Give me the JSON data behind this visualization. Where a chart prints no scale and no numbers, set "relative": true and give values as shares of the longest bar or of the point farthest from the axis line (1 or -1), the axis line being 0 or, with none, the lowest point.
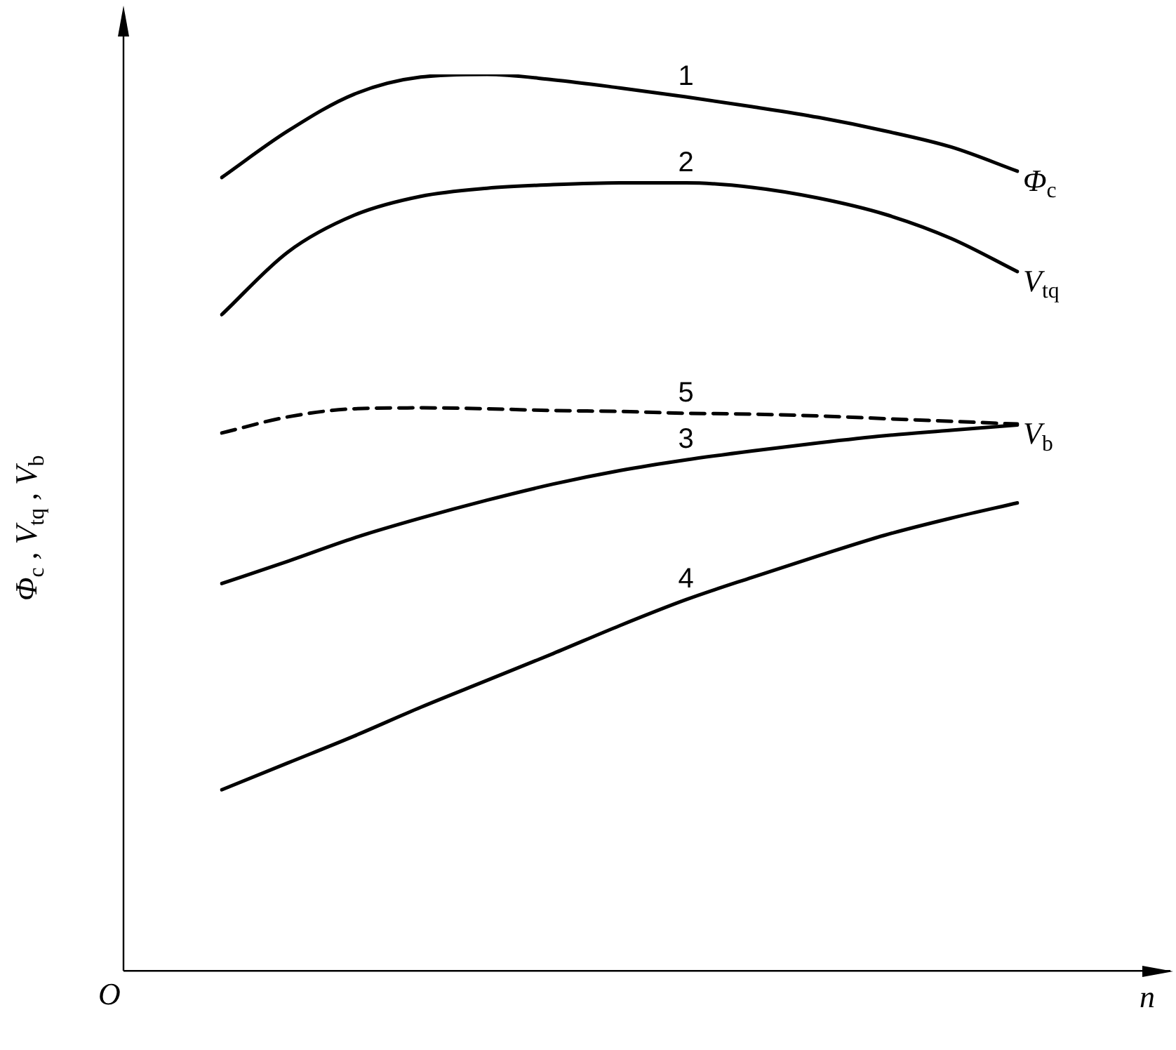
{
  "chart_data": {
    "type": "line",
    "relative": true,
    "xlabel": "n",
    "ylabel": "Φ$_{c}$ , V$_{tq}$ , V$_{b}$",
    "legend": false,
    "marker": "none",
    "categories": [
      null,
      null,
      null,
      null,
      null,
      null,
      null,
      null,
      null,
      null,
      null,
      null,
      null
    ],
    "series": [
      {
        "name": "1",
        "color": "#000000",
        "line_style": "solid",
        "values": [
          0.885,
          0.937,
          0.978,
          0.997,
          1,
          0.994,
          0.985,
          0.975,
          0.964,
          0.952,
          0.937,
          0.919,
          0.892
        ]
      },
      {
        "name": "2",
        "color": "#000000",
        "line_style": "solid",
        "values": [
          0.732,
          0.802,
          0.843,
          0.864,
          0.873,
          0.877,
          0.879,
          0.879,
          0.874,
          0.862,
          0.844,
          0.817,
          0.78
        ]
      },
      {
        "name": "5",
        "color": "#000000",
        "line_style": "dashed",
        "values": [
          0.6,
          0.618,
          0.627,
          0.628,
          0.627,
          0.625,
          0.624,
          0.622,
          0.621,
          0.619,
          0.616,
          0.613,
          0.61
        ]
      },
      {
        "name": "3",
        "color": "#000000",
        "line_style": "solid",
        "values": [
          0.432,
          0.457,
          0.483,
          0.505,
          0.525,
          0.543,
          0.558,
          0.57,
          0.58,
          0.589,
          0.597,
          0.603,
          0.609
        ]
      },
      {
        "name": "4",
        "color": "#000000",
        "line_style": "solid",
        "values": [
          0.202,
          0.232,
          0.262,
          0.294,
          0.324,
          0.354,
          0.385,
          0.414,
          0.439,
          0.463,
          0.486,
          0.505,
          0.522
        ]
      }
    ],
    "annotations": [
      "Φ$_{c}$",
      "V$_{tq}$",
      "V$_{b}$",
      "O"
    ]
  }
}
